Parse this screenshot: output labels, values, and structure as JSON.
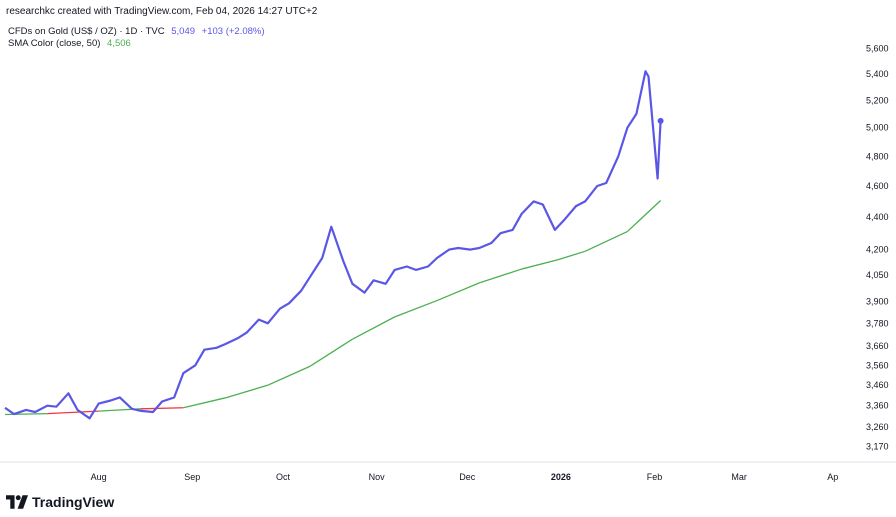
{
  "credit": "researchkc created with TradingView.com, Feb 04, 2026 14:27 UTC+2",
  "legend": {
    "main": {
      "name": "CFDs on Gold (US$ / OZ) · 1D · TVC",
      "value": "5,049",
      "change": "+103 (+2.08%)"
    },
    "sma": {
      "name": "SMA Color (close, 50)",
      "value": "4,506"
    }
  },
  "logo_text": "TradingView",
  "colors": {
    "price": "#5b57e6",
    "sma_up": "#4caf50",
    "sma_down": "#f23645",
    "bg": "#ffffff",
    "text": "#131722"
  },
  "chart_data": {
    "type": "line",
    "y_scale": "log",
    "ylim": [
      3100,
      5750
    ],
    "xlim": [
      "2025-07-01",
      "2026-04-10"
    ],
    "y_ticks": [
      "5,600",
      "5,400",
      "5,200",
      "5,000",
      "4,800",
      "4,600",
      "4,400",
      "4,200",
      "4,050",
      "3,900",
      "3,780",
      "3,660",
      "3,560",
      "3,460",
      "3,360",
      "3,260",
      "3,170"
    ],
    "x_ticks": [
      {
        "label": "Aug",
        "date": "2025-08-01",
        "bold": false
      },
      {
        "label": "Sep",
        "date": "2025-09-01",
        "bold": false
      },
      {
        "label": "Oct",
        "date": "2025-10-01",
        "bold": false
      },
      {
        "label": "Nov",
        "date": "2025-11-01",
        "bold": false
      },
      {
        "label": "Dec",
        "date": "2025-12-01",
        "bold": false
      },
      {
        "label": "2026",
        "date": "2026-01-01",
        "bold": true
      },
      {
        "label": "Feb",
        "date": "2026-02-01",
        "bold": false
      },
      {
        "label": "Mar",
        "date": "2026-03-01",
        "bold": false
      },
      {
        "label": "Ap",
        "date": "2026-04-01",
        "bold": false
      }
    ],
    "series": [
      {
        "name": "CFDs on Gold (US$ / OZ)",
        "x": [
          "2025-07-01",
          "2025-07-04",
          "2025-07-08",
          "2025-07-11",
          "2025-07-15",
          "2025-07-18",
          "2025-07-22",
          "2025-07-25",
          "2025-07-29",
          "2025-08-01",
          "2025-08-05",
          "2025-08-08",
          "2025-08-12",
          "2025-08-15",
          "2025-08-19",
          "2025-08-22",
          "2025-08-26",
          "2025-08-29",
          "2025-09-02",
          "2025-09-05",
          "2025-09-09",
          "2025-09-12",
          "2025-09-16",
          "2025-09-19",
          "2025-09-23",
          "2025-09-26",
          "2025-09-30",
          "2025-10-03",
          "2025-10-07",
          "2025-10-10",
          "2025-10-14",
          "2025-10-17",
          "2025-10-21",
          "2025-10-24",
          "2025-10-28",
          "2025-10-31",
          "2025-11-04",
          "2025-11-07",
          "2025-11-11",
          "2025-11-14",
          "2025-11-18",
          "2025-11-21",
          "2025-11-25",
          "2025-11-28",
          "2025-12-02",
          "2025-12-05",
          "2025-12-09",
          "2025-12-12",
          "2025-12-16",
          "2025-12-19",
          "2025-12-23",
          "2025-12-26",
          "2025-12-30",
          "2026-01-02",
          "2026-01-06",
          "2026-01-09",
          "2026-01-13",
          "2026-01-16",
          "2026-01-20",
          "2026-01-23",
          "2026-01-26",
          "2026-01-29",
          "2026-01-30",
          "2026-02-02",
          "2026-02-03"
        ],
        "y": [
          3350,
          3320,
          3340,
          3330,
          3360,
          3355,
          3420,
          3340,
          3300,
          3370,
          3385,
          3400,
          3345,
          3335,
          3330,
          3380,
          3400,
          3520,
          3560,
          3640,
          3650,
          3670,
          3700,
          3730,
          3800,
          3780,
          3860,
          3890,
          3960,
          4040,
          4150,
          4340,
          4130,
          4000,
          3950,
          4020,
          4000,
          4080,
          4100,
          4080,
          4100,
          4150,
          4200,
          4210,
          4200,
          4210,
          4240,
          4300,
          4320,
          4420,
          4500,
          4480,
          4320,
          4380,
          4470,
          4500,
          4600,
          4620,
          4800,
          5000,
          5100,
          5420,
          5380,
          4650,
          5049
        ]
      },
      {
        "name": "SMA Color (close, 50)",
        "x": [
          "2025-07-01",
          "2025-07-15",
          "2025-08-01",
          "2025-08-15",
          "2025-08-29",
          "2025-09-12",
          "2025-09-26",
          "2025-10-10",
          "2025-10-24",
          "2025-11-07",
          "2025-11-21",
          "2025-12-05",
          "2025-12-19",
          "2025-12-31",
          "2026-01-09",
          "2026-01-23",
          "2026-02-03"
        ],
        "y": [
          3318,
          3322,
          3334,
          3345,
          3350,
          3398,
          3460,
          3555,
          3695,
          3815,
          3905,
          4005,
          4085,
          4140,
          4190,
          4310,
          4506
        ]
      }
    ]
  }
}
